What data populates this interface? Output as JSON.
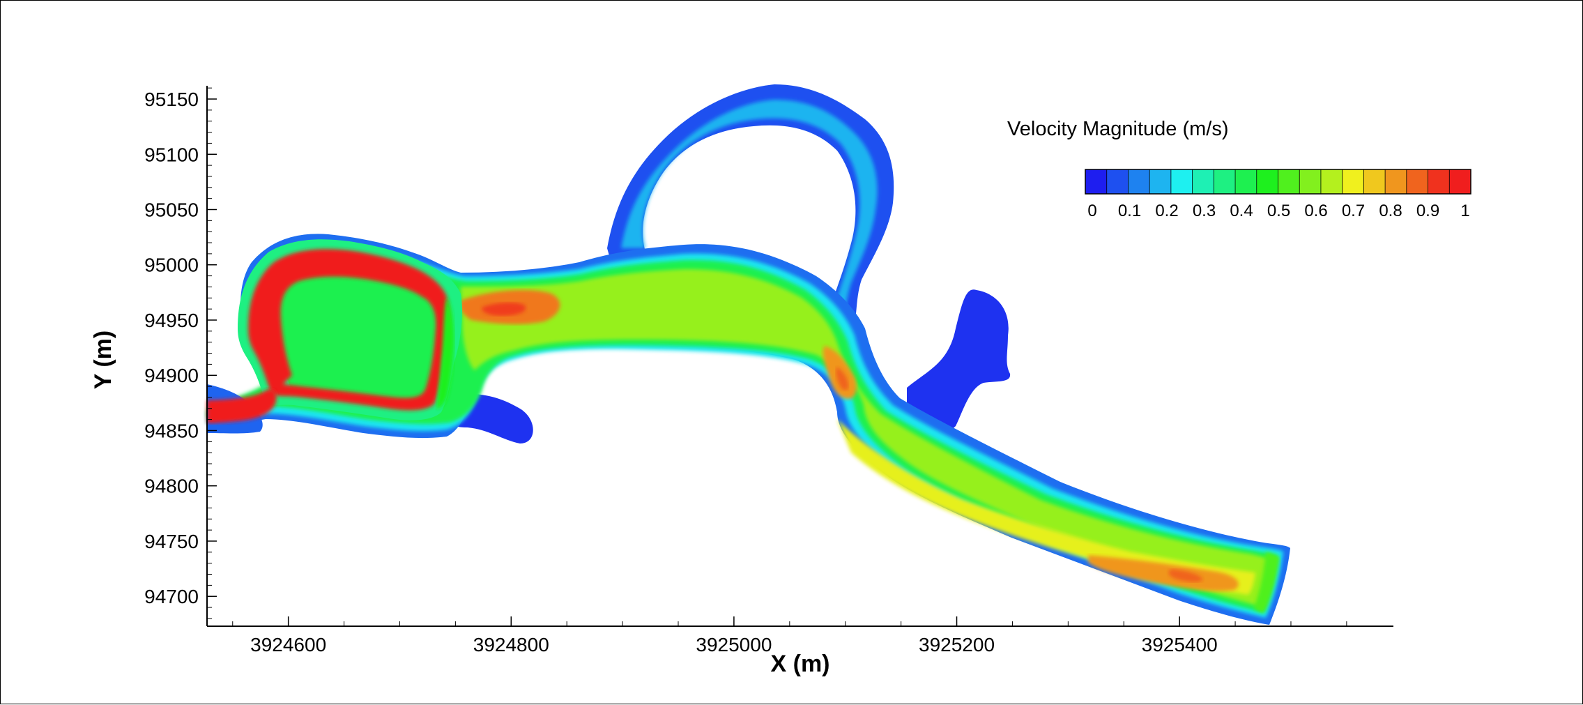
{
  "chart_data": {
    "type": "heatmap",
    "title": "",
    "xlabel": "X (m)",
    "ylabel": "Y (m)",
    "xlim": [
      3924527,
      3925592
    ],
    "ylim": [
      94673,
      95162
    ],
    "x_ticks": [
      "3924600",
      "3924800",
      "3925000",
      "3925200",
      "3925400"
    ],
    "x_tick_values": [
      3924600,
      3924800,
      3925000,
      3925200,
      3925400
    ],
    "y_ticks": [
      "94700",
      "94750",
      "94800",
      "94850",
      "94900",
      "94950",
      "95000",
      "95050",
      "95100",
      "95150"
    ],
    "y_tick_values": [
      94700,
      94750,
      94800,
      94850,
      94900,
      94950,
      95000,
      95050,
      95100,
      95150
    ],
    "grid": false,
    "legend": {
      "title": "Velocity Magnitude (m/s)",
      "placement": "top-right",
      "labels": [
        "0",
        "0.1",
        "0.2",
        "0.3",
        "0.4",
        "0.5",
        "0.6",
        "0.7",
        "0.8",
        "0.9",
        "1"
      ],
      "values": [
        0,
        0.1,
        0.2,
        0.3,
        0.4,
        0.5,
        0.6,
        0.7,
        0.8,
        0.9,
        1
      ],
      "colors": [
        "#1e1ef0",
        "#1e50f0",
        "#1e82f0",
        "#1eb4f0",
        "#1ef0f0",
        "#1ef0b4",
        "#1ef082",
        "#1ef050",
        "#1ef01e",
        "#50f01e",
        "#82f01e",
        "#b4f01e",
        "#f0f01e",
        "#f0c81e",
        "#f0961e",
        "#f0641e",
        "#f0321e",
        "#f01e1e"
      ]
    },
    "region_velocity": [
      {
        "region": "inlet-channel-west",
        "value": 1.0
      },
      {
        "region": "north-loop-channel",
        "value": 0.97
      },
      {
        "region": "south-loop-channel",
        "value": 0.95
      },
      {
        "region": "east-loop-connector",
        "value": 0.6
      },
      {
        "region": "main-channel-confluence",
        "value": 0.88
      },
      {
        "region": "main-channel-middle",
        "value": 0.65
      },
      {
        "region": "bend-hotspot",
        "value": 0.9
      },
      {
        "region": "downstream-channel",
        "value": 0.75
      },
      {
        "region": "downstream-hotspot",
        "value": 0.88
      },
      {
        "region": "outlet-east",
        "value": 0.62
      },
      {
        "region": "north-oxbow-loop",
        "value": 0.18
      },
      {
        "region": "east-side-pocket",
        "value": 0.0
      },
      {
        "region": "south-west-pocket",
        "value": 0.05
      }
    ]
  }
}
